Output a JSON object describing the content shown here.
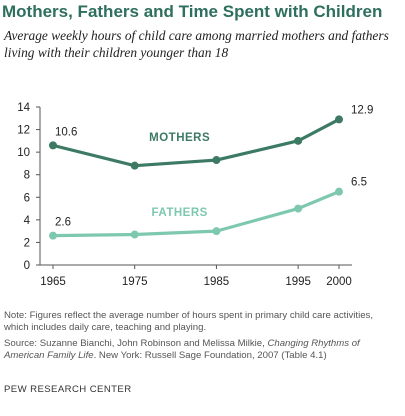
{
  "chart_data": {
    "type": "line",
    "title": "Mothers, Fathers and Time Spent with Children",
    "subtitle": "Average weekly hours of child care among married mothers and fathers living with their children younger than 18",
    "x": [
      1965,
      1975,
      1985,
      1995,
      2000
    ],
    "x_tick_labels": [
      "1965",
      "1975",
      "1985",
      "1995",
      "2000"
    ],
    "y_ticks": [
      0,
      2,
      4,
      6,
      8,
      10,
      12,
      14
    ],
    "ylim": [
      0,
      14
    ],
    "grid": false,
    "series": [
      {
        "name": "MOTHERS",
        "values": [
          10.6,
          8.8,
          9.3,
          11.0,
          12.9
        ],
        "labels": [
          "10.6",
          "",
          "",
          "",
          "12.9"
        ],
        "color": "#3c7a64"
      },
      {
        "name": "FATHERS",
        "values": [
          2.6,
          2.7,
          3.0,
          5.0,
          6.5
        ],
        "labels": [
          "2.6",
          "",
          "",
          "",
          "6.5"
        ],
        "color": "#7ec8b0"
      }
    ]
  },
  "note": "Note: Figures reflect the average number of hours spent in primary child care activities, which includes daily care, teaching and playing.",
  "source": {
    "prefix": "Source: Suzanne Bianchi, John Robinson and Melissa Milkie,",
    "book_title": "Changing Rhythms of American Family Life",
    "suffix": ". New York: Russell Sage Foundation, 2007 (Table 4.1)"
  },
  "credit": "PEW RESEARCH CENTER"
}
